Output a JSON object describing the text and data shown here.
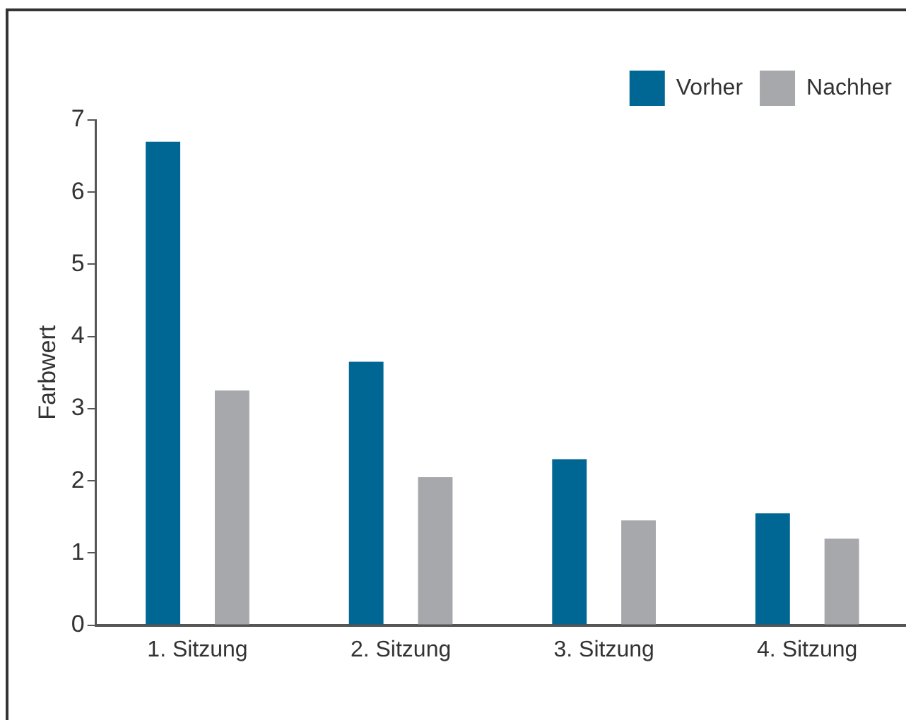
{
  "chart_data": {
    "type": "bar",
    "ylabel": "Farbwert",
    "categories": [
      "1. Sitzung",
      "2. Sitzung",
      "3. Sitzung",
      "4. Sitzung"
    ],
    "series": [
      {
        "name": "Vorher",
        "color": "#006694",
        "values": [
          6.7,
          3.65,
          2.3,
          1.55
        ]
      },
      {
        "name": "Nachher",
        "color": "#a7a8ab",
        "values": [
          3.25,
          2.05,
          1.45,
          1.2
        ]
      }
    ],
    "ylim": [
      0,
      7
    ],
    "yticks": [
      0,
      1,
      2,
      3,
      4,
      5,
      6,
      7
    ],
    "grid": false,
    "legend": "top right"
  }
}
